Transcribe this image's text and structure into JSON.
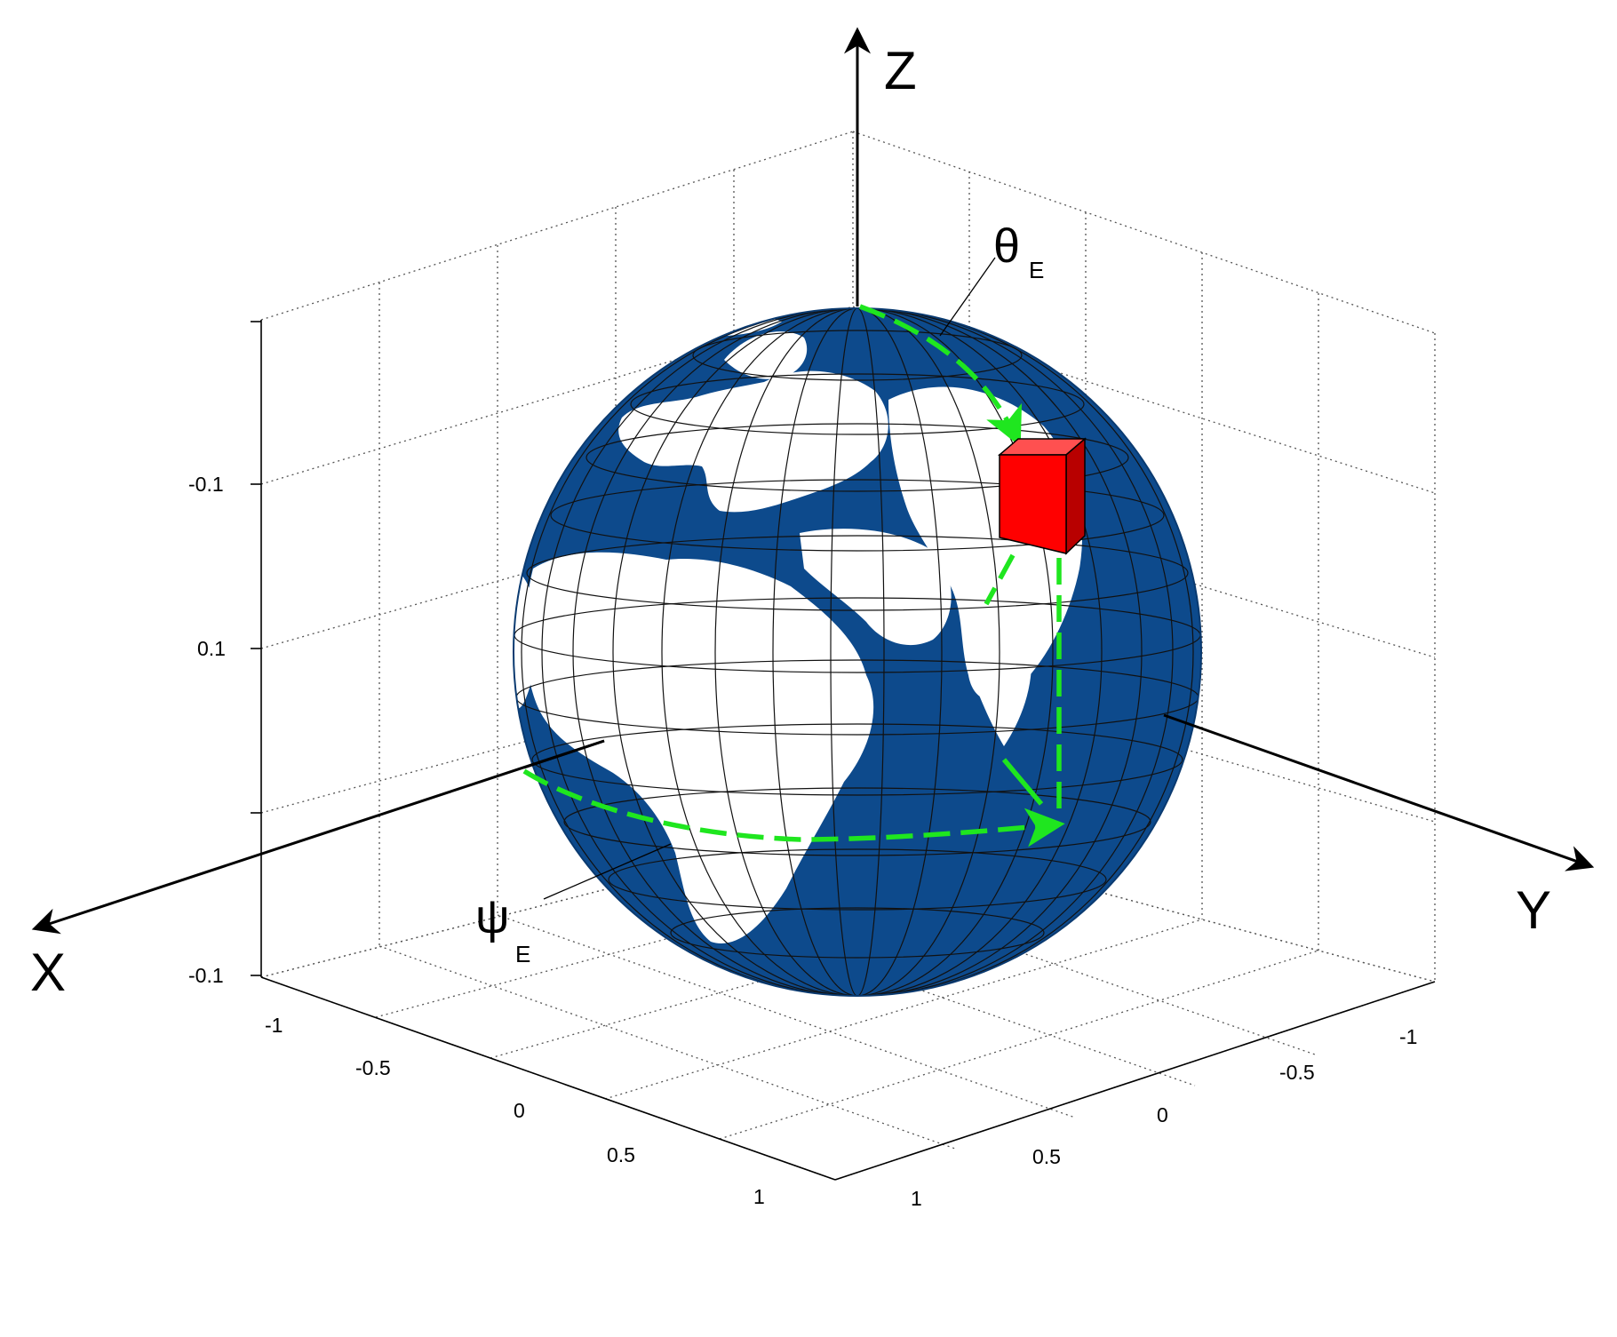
{
  "axes": {
    "x_label": "X",
    "y_label": "Y",
    "z_label": "Z"
  },
  "z_ticks": [
    "-0.1",
    "0.1",
    "-0.1"
  ],
  "x_ticks": [
    "-1",
    "-0.5",
    "0",
    "0.5",
    "1"
  ],
  "y_ticks": [
    "-1",
    "-0.5",
    "0",
    "0.5",
    "1"
  ],
  "angles": {
    "theta": {
      "symbol": "θ",
      "subscript": "E"
    },
    "psi": {
      "symbol": "ψ",
      "subscript": "E"
    }
  },
  "colors": {
    "ocean": "#0d4a8c",
    "land": "#ffffff",
    "path": "#1fe61f",
    "cube": "#ff0000"
  }
}
